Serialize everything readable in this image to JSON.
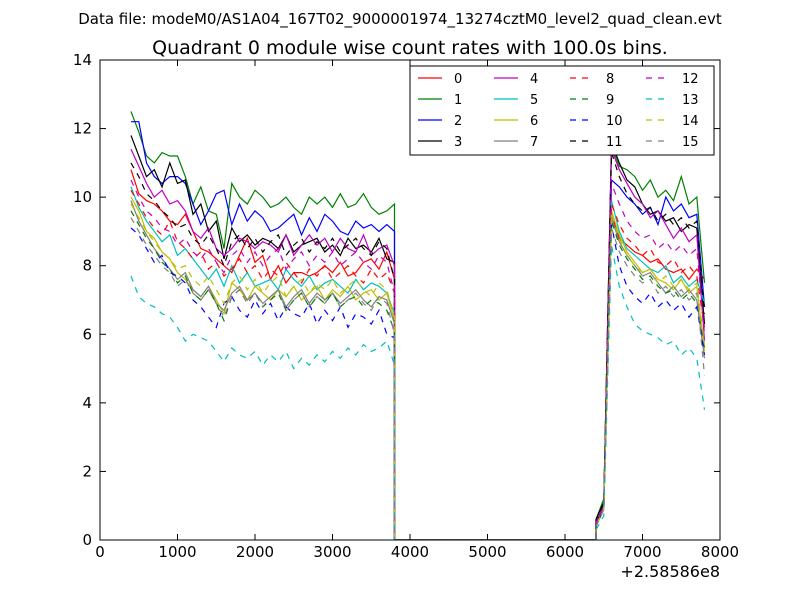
{
  "suptitle": "Data file: modeM0/AS1A04_167T02_9000001974_13274cztM0_level2_quad_clean.evt",
  "chart_data": {
    "type": "line",
    "title": "Quadrant 0 module wise count rates with 100.0s bins.",
    "xlabel": "",
    "ylabel": "",
    "offset_label": "+2.58586e8",
    "xlim": [
      0,
      8000
    ],
    "ylim": [
      0,
      14
    ],
    "xticks": [
      0,
      1000,
      2000,
      3000,
      4000,
      5000,
      6000,
      7000,
      8000
    ],
    "yticks": [
      0,
      2,
      4,
      6,
      8,
      10,
      12,
      14
    ],
    "legend_position": "top-right",
    "legend_columns": 4,
    "segments": [
      {
        "x_start": 400,
        "x_end": 3800,
        "step": 100
      },
      {
        "x_start": 6400,
        "x_end": 7800,
        "step": 100
      }
    ],
    "gap": {
      "x": [
        3800,
        3900,
        4000,
        4500,
        5000,
        5500,
        6000,
        6400
      ],
      "y": [
        0,
        0,
        0,
        0,
        0,
        0,
        0,
        0
      ]
    },
    "series": [
      {
        "name": "0",
        "color": "#ff0000",
        "style": "solid",
        "v1": [
          10.8,
          10.1,
          9.9,
          9.8,
          9.6,
          9.3,
          9.2,
          9.5,
          9.0,
          8.5,
          8.4,
          8.2,
          8.0,
          7.8,
          8.3,
          8.8,
          8.1,
          8.3,
          7.6,
          8.0,
          7.5,
          7.8,
          7.8,
          7.7,
          7.8,
          8.0,
          7.8,
          8.1,
          7.7,
          7.8,
          8.1,
          8.2,
          7.9,
          8.4,
          7.6
        ],
        "v2": [
          0.5,
          1.0,
          9.5,
          8.8,
          8.6,
          8.4,
          8.3,
          8.1,
          8.2,
          7.9,
          7.8,
          7.9,
          7.6,
          7.9,
          7.6
        ]
      },
      {
        "name": "1",
        "color": "#008000",
        "style": "solid",
        "v1": [
          12.5,
          11.9,
          11.2,
          11.0,
          11.3,
          11.2,
          11.2,
          10.6,
          9.8,
          10.3,
          9.6,
          9.5,
          8.5,
          10.4,
          10.0,
          9.8,
          10.2,
          10.0,
          9.7,
          9.8,
          10.0,
          9.7,
          9.5,
          10.0,
          9.8,
          10.0,
          9.7,
          10.1,
          9.7,
          9.8,
          10.1,
          9.7,
          9.5,
          9.6,
          9.8
        ],
        "v2": [
          0.6,
          1.2,
          11.5,
          10.9,
          10.8,
          10.6,
          10.2,
          10.5,
          10.0,
          10.2,
          9.9,
          10.6,
          9.8,
          10.0,
          7.5
        ]
      },
      {
        "name": "2",
        "color": "#0000ff",
        "style": "solid",
        "v1": [
          12.2,
          12.2,
          11.0,
          10.6,
          10.4,
          10.6,
          10.6,
          10.4,
          9.8,
          9.2,
          9.6,
          10.1,
          10.2,
          9.2,
          9.8,
          9.3,
          9.6,
          9.4,
          9.0,
          9.1,
          9.3,
          9.5,
          8.9,
          9.4,
          9.0,
          9.5,
          9.3,
          9.0,
          8.9,
          9.3,
          9.1,
          9.2,
          9.0,
          9.2,
          9.0
        ],
        "v2": [
          0.5,
          1.0,
          10.5,
          10.3,
          10.0,
          9.8,
          9.5,
          9.7,
          9.2,
          10.0,
          9.6,
          9.8,
          9.4,
          9.5,
          6.8
        ]
      },
      {
        "name": "3",
        "color": "#000000",
        "style": "solid",
        "v1": [
          11.8,
          11.2,
          10.6,
          10.8,
          10.3,
          11.0,
          10.4,
          10.5,
          9.5,
          9.8,
          9.0,
          9.3,
          8.2,
          9.1,
          8.7,
          8.9,
          8.6,
          8.8,
          8.7,
          8.5,
          8.9,
          8.4,
          8.6,
          8.7,
          8.8,
          8.4,
          8.6,
          8.3,
          8.8,
          8.5,
          8.6,
          8.4,
          8.8,
          8.2,
          8.1
        ],
        "v2": [
          0.6,
          1.1,
          11.6,
          11.0,
          10.5,
          10.3,
          9.8,
          9.5,
          9.6,
          9.3,
          9.4,
          9.0,
          9.2,
          9.1,
          6.3
        ]
      },
      {
        "name": "4",
        "color": "#bf00bf",
        "style": "solid",
        "v1": [
          11.4,
          10.9,
          10.4,
          10.0,
          10.2,
          9.8,
          9.9,
          9.6,
          9.0,
          8.8,
          9.1,
          8.5,
          8.3,
          8.5,
          8.8,
          8.7,
          8.5,
          8.7,
          8.6,
          8.4,
          8.9,
          8.3,
          8.6,
          8.9,
          8.6,
          8.8,
          8.4,
          8.8,
          8.5,
          8.4,
          8.9,
          8.3,
          8.5,
          8.6,
          8.0
        ],
        "v2": [
          0.5,
          1.0,
          11.4,
          10.8,
          10.4,
          10.0,
          9.8,
          9.4,
          9.6,
          9.2,
          8.8,
          9.1,
          8.7,
          8.9,
          5.8
        ]
      },
      {
        "name": "5",
        "color": "#00bfbf",
        "style": "solid",
        "v1": [
          10.3,
          9.7,
          9.3,
          9.0,
          8.7,
          8.9,
          8.3,
          8.5,
          8.2,
          7.9,
          7.6,
          7.9,
          7.4,
          8.0,
          7.5,
          7.8,
          7.4,
          7.5,
          7.6,
          7.3,
          7.9,
          7.6,
          7.4,
          7.7,
          7.3,
          7.5,
          7.6,
          7.4,
          7.2,
          7.6,
          7.3,
          7.5,
          7.4,
          7.2,
          6.6
        ],
        "v2": [
          0.4,
          0.9,
          9.9,
          9.0,
          8.5,
          8.3,
          8.1,
          7.9,
          7.8,
          8.0,
          7.5,
          7.7,
          7.4,
          7.6,
          6.9
        ]
      },
      {
        "name": "6",
        "color": "#bfbf00",
        "style": "solid",
        "v1": [
          10.0,
          9.6,
          9.0,
          8.8,
          8.4,
          8.2,
          7.8,
          7.6,
          7.3,
          7.1,
          7.4,
          7.0,
          6.6,
          7.5,
          7.3,
          7.0,
          7.4,
          7.2,
          7.0,
          7.3,
          7.1,
          7.4,
          7.0,
          7.2,
          7.4,
          7.0,
          7.3,
          7.1,
          7.4,
          7.0,
          7.2,
          7.3,
          7.0,
          7.2,
          6.4
        ],
        "v2": [
          0.4,
          0.9,
          9.6,
          8.9,
          8.4,
          8.1,
          7.8,
          7.9,
          7.6,
          7.5,
          7.3,
          7.6,
          7.2,
          7.4,
          5.5
        ]
      },
      {
        "name": "7",
        "color": "#808080",
        "style": "solid",
        "v1": [
          9.9,
          9.3,
          8.9,
          8.5,
          8.2,
          7.9,
          7.6,
          7.8,
          7.3,
          7.1,
          7.4,
          6.9,
          6.7,
          7.2,
          7.4,
          7.0,
          7.2,
          6.9,
          7.1,
          7.3,
          6.8,
          7.1,
          7.3,
          6.9,
          7.2,
          7.0,
          7.2,
          6.9,
          7.1,
          7.3,
          7.0,
          6.8,
          7.1,
          7.0,
          6.3
        ],
        "v2": [
          0.4,
          0.9,
          9.4,
          8.7,
          8.3,
          8.0,
          7.7,
          7.8,
          7.5,
          7.2,
          7.4,
          7.1,
          7.3,
          7.0,
          5.3
        ]
      },
      {
        "name": "8",
        "color": "#ff0000",
        "style": "dashed",
        "v1": [
          10.2,
          9.8,
          9.4,
          9.1,
          8.9,
          9.3,
          8.7,
          8.5,
          8.2,
          8.4,
          7.9,
          8.1,
          7.7,
          7.9,
          8.2,
          7.8,
          8.0,
          7.6,
          7.9,
          7.7,
          8.1,
          7.8,
          7.5,
          7.9,
          7.7,
          8.0,
          7.6,
          7.8,
          8.0,
          7.7,
          7.5,
          7.9,
          7.6,
          7.8,
          7.2
        ],
        "v2": [
          0.5,
          1.0,
          9.8,
          9.2,
          8.8,
          8.6,
          8.3,
          8.5,
          8.1,
          8.0,
          8.2,
          7.8,
          8.0,
          7.7,
          6.2
        ]
      },
      {
        "name": "9",
        "color": "#008000",
        "style": "dashed",
        "v1": [
          9.6,
          9.2,
          8.8,
          8.5,
          8.1,
          7.9,
          7.5,
          7.7,
          7.2,
          7.0,
          7.3,
          6.9,
          6.4,
          7.1,
          7.3,
          6.9,
          7.2,
          6.8,
          7.0,
          7.2,
          6.7,
          7.0,
          7.2,
          6.8,
          7.1,
          6.9,
          7.2,
          6.8,
          7.0,
          7.1,
          6.8,
          7.0,
          6.9,
          6.7,
          6.1
        ],
        "v2": [
          0.4,
          0.9,
          9.3,
          8.6,
          8.2,
          7.9,
          7.6,
          7.7,
          7.4,
          7.2,
          7.3,
          7.0,
          7.2,
          6.9,
          5.6
        ]
      },
      {
        "name": "10",
        "color": "#0000ff",
        "style": "dashed",
        "v1": [
          9.1,
          8.9,
          8.5,
          8.1,
          8.3,
          7.8,
          7.7,
          7.5,
          7.0,
          6.8,
          6.5,
          6.2,
          6.9,
          7.1,
          6.7,
          6.5,
          7.0,
          6.6,
          6.9,
          6.4,
          6.8,
          6.6,
          6.5,
          6.9,
          6.3,
          6.7,
          6.4,
          6.8,
          6.2,
          6.6,
          6.5,
          6.3,
          6.7,
          6.0,
          5.9
        ],
        "v2": [
          0.4,
          0.9,
          9.2,
          8.0,
          7.4,
          7.1,
          6.9,
          7.2,
          6.8,
          7.0,
          6.7,
          6.9,
          6.5,
          6.8,
          5.4
        ]
      },
      {
        "name": "11",
        "color": "#000000",
        "style": "dashed",
        "v1": [
          11.0,
          10.6,
          10.1,
          9.9,
          9.6,
          9.4,
          9.1,
          9.2,
          8.8,
          8.6,
          8.9,
          8.5,
          8.0,
          8.7,
          8.9,
          8.5,
          8.8,
          8.4,
          8.7,
          8.9,
          8.3,
          8.6,
          8.8,
          8.4,
          8.7,
          8.5,
          8.8,
          8.4,
          8.6,
          8.8,
          8.5,
          8.3,
          8.7,
          8.5,
          7.6
        ],
        "v2": [
          0.5,
          1.1,
          11.3,
          10.6,
          10.1,
          9.8,
          9.6,
          9.7,
          9.3,
          9.5,
          9.2,
          9.4,
          9.1,
          9.3,
          6.6
        ]
      },
      {
        "name": "12",
        "color": "#bf00bf",
        "style": "dashed",
        "v1": [
          10.5,
          10.0,
          9.6,
          9.4,
          9.1,
          9.0,
          8.6,
          8.8,
          8.4,
          8.2,
          8.5,
          8.1,
          7.8,
          8.3,
          8.5,
          8.1,
          8.4,
          8.0,
          8.3,
          8.5,
          7.9,
          8.2,
          8.4,
          8.0,
          8.3,
          8.1,
          8.4,
          8.0,
          8.2,
          8.4,
          8.1,
          7.9,
          8.3,
          8.1,
          7.2
        ],
        "v2": [
          0.5,
          1.0,
          10.4,
          9.8,
          9.3,
          9.0,
          8.8,
          8.9,
          8.5,
          8.7,
          8.4,
          8.6,
          8.3,
          8.5,
          6.0
        ]
      },
      {
        "name": "13",
        "color": "#00bfbf",
        "style": "dashed",
        "v1": [
          7.7,
          7.1,
          6.9,
          6.8,
          6.6,
          6.5,
          6.2,
          5.8,
          6.0,
          5.9,
          5.8,
          5.5,
          5.2,
          5.6,
          5.4,
          5.3,
          5.5,
          5.1,
          5.4,
          5.2,
          5.5,
          5.0,
          5.3,
          5.1,
          5.4,
          5.2,
          5.5,
          5.3,
          5.6,
          5.4,
          5.7,
          5.5,
          5.6,
          5.8,
          5.1
        ],
        "v2": [
          0.3,
          0.7,
          8.6,
          7.4,
          6.8,
          6.3,
          6.1,
          6.0,
          5.9,
          5.7,
          5.8,
          5.4,
          5.6,
          5.3,
          3.8
        ]
      },
      {
        "name": "14",
        "color": "#bfbf00",
        "style": "dashed",
        "v1": [
          9.8,
          9.4,
          9.0,
          8.7,
          8.4,
          8.2,
          7.9,
          8.0,
          7.6,
          7.4,
          7.7,
          7.3,
          6.9,
          7.5,
          7.7,
          7.3,
          7.6,
          7.2,
          7.5,
          7.7,
          7.1,
          7.4,
          7.6,
          7.2,
          7.5,
          7.3,
          7.6,
          7.2,
          7.4,
          7.6,
          7.3,
          7.1,
          7.5,
          7.3,
          6.5
        ],
        "v2": [
          0.4,
          0.9,
          9.5,
          8.8,
          8.3,
          8.0,
          7.8,
          7.9,
          7.5,
          7.7,
          7.4,
          7.6,
          7.3,
          7.5,
          5.7
        ]
      },
      {
        "name": "15",
        "color": "#808080",
        "style": "dashed",
        "v1": [
          9.4,
          9.0,
          8.6,
          8.3,
          8.0,
          7.8,
          7.4,
          7.6,
          7.2,
          7.0,
          7.3,
          6.9,
          6.5,
          7.1,
          7.3,
          6.9,
          7.2,
          6.8,
          7.1,
          7.3,
          6.7,
          7.0,
          7.2,
          6.8,
          7.1,
          6.9,
          7.2,
          6.8,
          7.0,
          7.2,
          6.9,
          6.7,
          7.1,
          6.9,
          6.0
        ],
        "v2": [
          0.4,
          0.9,
          9.1,
          8.4,
          8.0,
          7.7,
          7.5,
          7.6,
          7.2,
          7.4,
          7.1,
          7.3,
          7.0,
          7.2,
          4.8
        ]
      }
    ]
  }
}
